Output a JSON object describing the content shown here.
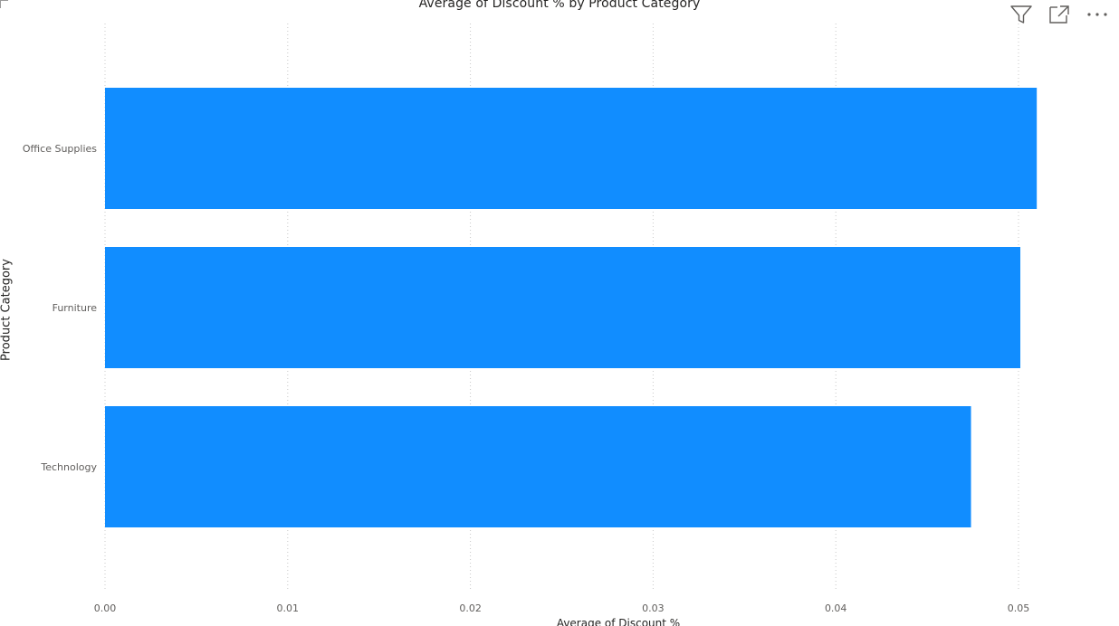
{
  "visual": {
    "title": "Average of Discount % by Product Category",
    "toolbar": {
      "filter_icon": "filter-icon",
      "focus_icon": "focus-mode-icon",
      "more_icon": "more-options-icon"
    }
  },
  "chart_data": {
    "type": "bar",
    "orientation": "horizontal",
    "title": "Average of Discount % by Product Category",
    "xlabel": "Average of Discount %",
    "ylabel": "Product Category",
    "categories": [
      "Office Supplies",
      "Furniture",
      "Technology"
    ],
    "values": [
      0.051,
      0.0501,
      0.0474
    ],
    "xlim": [
      0,
      0.05
    ],
    "xticks": [
      "0.00",
      "0.01",
      "0.02",
      "0.03",
      "0.04",
      "0.05"
    ],
    "grid": true,
    "bar_color": "#118DFF",
    "gridline_color": "#c8c8c8"
  }
}
